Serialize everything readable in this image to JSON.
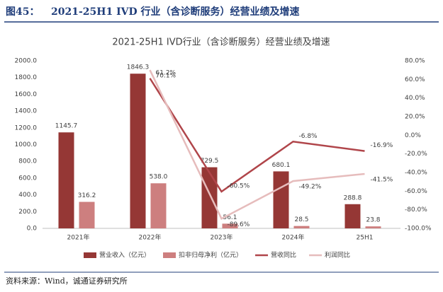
{
  "figure_label": "图45：",
  "figure_title": "2021-25H1 IVD 行业（含诊断服务）经营业绩及增速",
  "source": "资料来源：Wind，诚通证券研究所",
  "chart_data": {
    "type": "bar",
    "title": "2021-25H1 IVD行业（含诊断服务）经营业绩及增速",
    "categories": [
      "2021年",
      "2022年",
      "2023年",
      "2024年",
      "25H1"
    ],
    "series": [
      {
        "name": "营业收入（亿元）",
        "type": "bar",
        "color": "#953735",
        "values": [
          1145.7,
          1846.3,
          729.5,
          680.1,
          288.8
        ]
      },
      {
        "name": "扣非归母净利（亿元）",
        "type": "bar",
        "color": "#cd7f7f",
        "values": [
          316.2,
          538,
          56.1,
          28.5,
          23.8
        ],
        "value_labels": [
          "316.2",
          "538.0",
          "56.1",
          "28.5",
          "23.8"
        ]
      },
      {
        "name": "营收同比",
        "type": "line",
        "axis": "y2",
        "color": "#b0454a",
        "values": [
          null,
          61.2,
          -60.5,
          -6.8,
          -16.9
        ],
        "value_labels": [
          null,
          "61.2%",
          "-60.5%",
          "-6.8%",
          "-16.9%"
        ]
      },
      {
        "name": "利润同比",
        "type": "line",
        "axis": "y2",
        "color": "#e6bcbc",
        "values": [
          null,
          70.1,
          -89.6,
          -49.2,
          -41.5
        ],
        "value_labels": [
          null,
          "70.1%",
          "-89.6%",
          "-49.2%",
          "-41.5%"
        ]
      }
    ],
    "ylim": [
      0,
      2000
    ],
    "yticks": [
      {
        "value": 0,
        "label": "0.0"
      },
      {
        "value": 200,
        "label": "200.0"
      },
      {
        "value": 400,
        "label": "400.0"
      },
      {
        "value": 600,
        "label": "600.0"
      },
      {
        "value": 800,
        "label": "800.0"
      },
      {
        "value": 1000,
        "label": "1000.0"
      },
      {
        "value": 1200,
        "label": "1200.0"
      },
      {
        "value": 1400,
        "label": "1400.0"
      },
      {
        "value": 1600,
        "label": "1600.0"
      },
      {
        "value": 1800,
        "label": "1800.0"
      },
      {
        "value": 2000,
        "label": "2000.0"
      }
    ],
    "y2lim": [
      -100,
      80
    ],
    "y2ticks": [
      {
        "value": -100,
        "label": "-100.0%"
      },
      {
        "value": -80,
        "label": "-80.0%"
      },
      {
        "value": -60,
        "label": "-60.0%"
      },
      {
        "value": -40,
        "label": "-40.0%"
      },
      {
        "value": -20,
        "label": "-20.0%"
      },
      {
        "value": 0,
        "label": "0.0%"
      },
      {
        "value": 20,
        "label": "20.0%"
      },
      {
        "value": 40,
        "label": "40.0%"
      },
      {
        "value": 60,
        "label": "60.0%"
      },
      {
        "value": 80,
        "label": "80.0%"
      }
    ],
    "legend": "bottom"
  }
}
